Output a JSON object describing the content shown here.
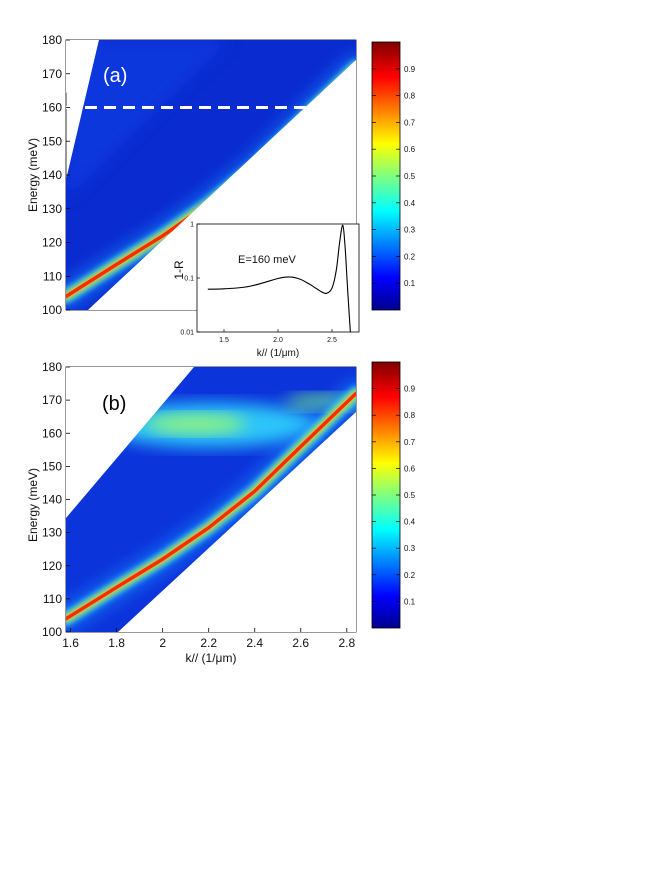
{
  "figure": {
    "panel_a_label": "(a)",
    "panel_b_label": "(b)"
  },
  "chart_data": [
    {
      "type": "heatmap",
      "panel": "(a)",
      "title": "",
      "ylabel": "Energy (meV)",
      "xlabel": "",
      "ylim": [
        100,
        180
      ],
      "yticks": [
        100,
        110,
        120,
        130,
        140,
        150,
        160,
        170,
        180
      ],
      "xlim": [
        1.58,
        2.84
      ],
      "xticks": [],
      "dashed_line_energy": 160,
      "ridge_points": [
        [
          1.58,
          104
        ],
        [
          1.8,
          113.5
        ],
        [
          2.0,
          122
        ],
        [
          2.2,
          131.5
        ],
        [
          2.4,
          142.5
        ],
        [
          2.6,
          156
        ],
        [
          2.84,
          172
        ]
      ],
      "colorbar": {
        "min": 0,
        "max": 1,
        "ticks": [
          0.1,
          0.2,
          0.3,
          0.4,
          0.5,
          0.6,
          0.7,
          0.8,
          0.9
        ],
        "colormap": "jet"
      },
      "inset": {
        "type": "line",
        "annotation": "E=160 meV",
        "ylabel": "1-R",
        "xlabel": "k// (1/μm)",
        "yscale": "log",
        "ylim": [
          0.01,
          1
        ],
        "yticks": [
          0.01,
          0.1,
          1
        ],
        "ytick_labels": [
          "0.01",
          "0.1",
          "1"
        ],
        "xlim": [
          1.25,
          2.75
        ],
        "xticks": [
          1.5,
          2.0,
          2.5
        ],
        "xtick_labels": [
          "1.5",
          "2.0",
          "2.5"
        ],
        "x": [
          1.35,
          1.5,
          1.7,
          1.85,
          2.0,
          2.1,
          2.2,
          2.3,
          2.4,
          2.45,
          2.5,
          2.54,
          2.57,
          2.6,
          2.62,
          2.64,
          2.66,
          2.67
        ],
        "y": [
          0.062,
          0.063,
          0.068,
          0.08,
          0.098,
          0.105,
          0.096,
          0.075,
          0.056,
          0.052,
          0.065,
          0.14,
          0.45,
          0.95,
          0.4,
          0.09,
          0.02,
          0.01
        ]
      }
    },
    {
      "type": "heatmap",
      "panel": "(b)",
      "title": "",
      "ylabel": "Energy (meV)",
      "xlabel": "k// (1/μm)",
      "ylim": [
        100,
        180
      ],
      "yticks": [
        100,
        110,
        120,
        130,
        140,
        150,
        160,
        170,
        180
      ],
      "xlim": [
        1.58,
        2.84
      ],
      "xticks": [
        1.6,
        1.8,
        2.0,
        2.2,
        2.4,
        2.6,
        2.8
      ],
      "xtick_labels": [
        "1.6",
        "1.8",
        "2",
        "2.2",
        "2.4",
        "2.6",
        "2.8"
      ],
      "ridge_points": [
        [
          1.58,
          104
        ],
        [
          1.8,
          113.5
        ],
        [
          2.0,
          122
        ],
        [
          2.2,
          131.5
        ],
        [
          2.4,
          142.5
        ],
        [
          2.6,
          156
        ],
        [
          2.84,
          172
        ]
      ],
      "bright_band": {
        "energy": 161,
        "x_range": [
          1.9,
          2.7
        ]
      },
      "colorbar": {
        "min": 0,
        "max": 1,
        "ticks": [
          0.1,
          0.2,
          0.3,
          0.4,
          0.5,
          0.6,
          0.7,
          0.8,
          0.9
        ],
        "colormap": "jet"
      }
    }
  ]
}
